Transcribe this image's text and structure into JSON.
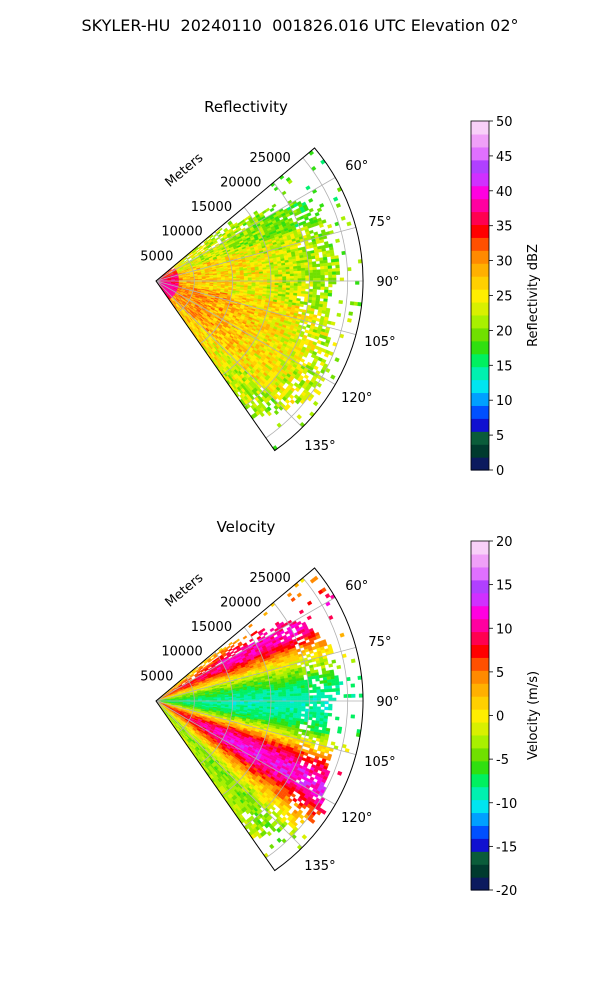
{
  "figure_title": "SKYLER-HU  20240110  001826.016 UTC Elevation 02°",
  "chart_data": [
    {
      "type": "heatmap",
      "projection": "polar-sector",
      "title": "Reflectivity",
      "range_label": "Meters",
      "range_ticks": [
        "5000",
        "10000",
        "15000",
        "20000",
        "25000"
      ],
      "range_values": [
        5000,
        10000,
        15000,
        20000,
        25000
      ],
      "range_max": 27000,
      "azimuth_ticks": [
        "60°",
        "75°",
        "90°",
        "105°",
        "120°",
        "135°"
      ],
      "azimuth_values": [
        60,
        75,
        90,
        105,
        120,
        135
      ],
      "azimuth_range": [
        50,
        145
      ],
      "colorbar": {
        "label": "Reflectivity dBZ",
        "ticks": [
          "0",
          "5",
          "10",
          "15",
          "20",
          "25",
          "30",
          "35",
          "40",
          "45",
          "50"
        ],
        "range": [
          0,
          50
        ],
        "colors": [
          "#0b1a5e",
          "#003a2e",
          "#0a5c3a",
          "#1010d0",
          "#0050ff",
          "#00a0ff",
          "#00e5f0",
          "#00f0b0",
          "#00f060",
          "#30e010",
          "#70e000",
          "#a8f000",
          "#d8f000",
          "#ffee00",
          "#ffd000",
          "#ffb000",
          "#ff8a00",
          "#ff5000",
          "#ff0000",
          "#ff0050",
          "#ff00a0",
          "#ff00e0",
          "#d030ff",
          "#b040ff",
          "#e070ff",
          "#f0a0f8",
          "#f8d0f8"
        ]
      },
      "field_summary": "Echo values mostly 20–30 dBZ across the sector, higher (35+) near the radar."
    },
    {
      "type": "heatmap",
      "projection": "polar-sector",
      "title": "Velocity",
      "range_label": "Meters",
      "range_ticks": [
        "5000",
        "10000",
        "15000",
        "20000",
        "25000"
      ],
      "range_values": [
        5000,
        10000,
        15000,
        20000,
        25000
      ],
      "range_max": 27000,
      "azimuth_ticks": [
        "60°",
        "75°",
        "90°",
        "105°",
        "120°",
        "135°"
      ],
      "azimuth_values": [
        60,
        75,
        90,
        105,
        120,
        135
      ],
      "azimuth_range": [
        50,
        145
      ],
      "colorbar": {
        "label": "Velocity (m/s)",
        "ticks": [
          "-20",
          "-15",
          "-10",
          "-5",
          "0",
          "5",
          "10",
          "15",
          "20"
        ],
        "range": [
          -20,
          20
        ],
        "colors": [
          "#0b1a5e",
          "#003a2e",
          "#0a5c3a",
          "#1010d0",
          "#0050ff",
          "#00a0ff",
          "#00e5f0",
          "#00f0b0",
          "#00f060",
          "#30e010",
          "#70e000",
          "#a8f000",
          "#d8f000",
          "#ffee00",
          "#ffd000",
          "#ffb000",
          "#ff8a00",
          "#ff5000",
          "#ff0000",
          "#ff0050",
          "#ff00a0",
          "#ff00e0",
          "#d030ff",
          "#b040ff",
          "#e070ff",
          "#f0a0f8",
          "#f8d0f8"
        ]
      },
      "field_summary": "Band pattern: magenta/red near 55–70°, green/cyan near 85–100°, red/magenta near 110–125°, yellow/green near 135°."
    }
  ]
}
